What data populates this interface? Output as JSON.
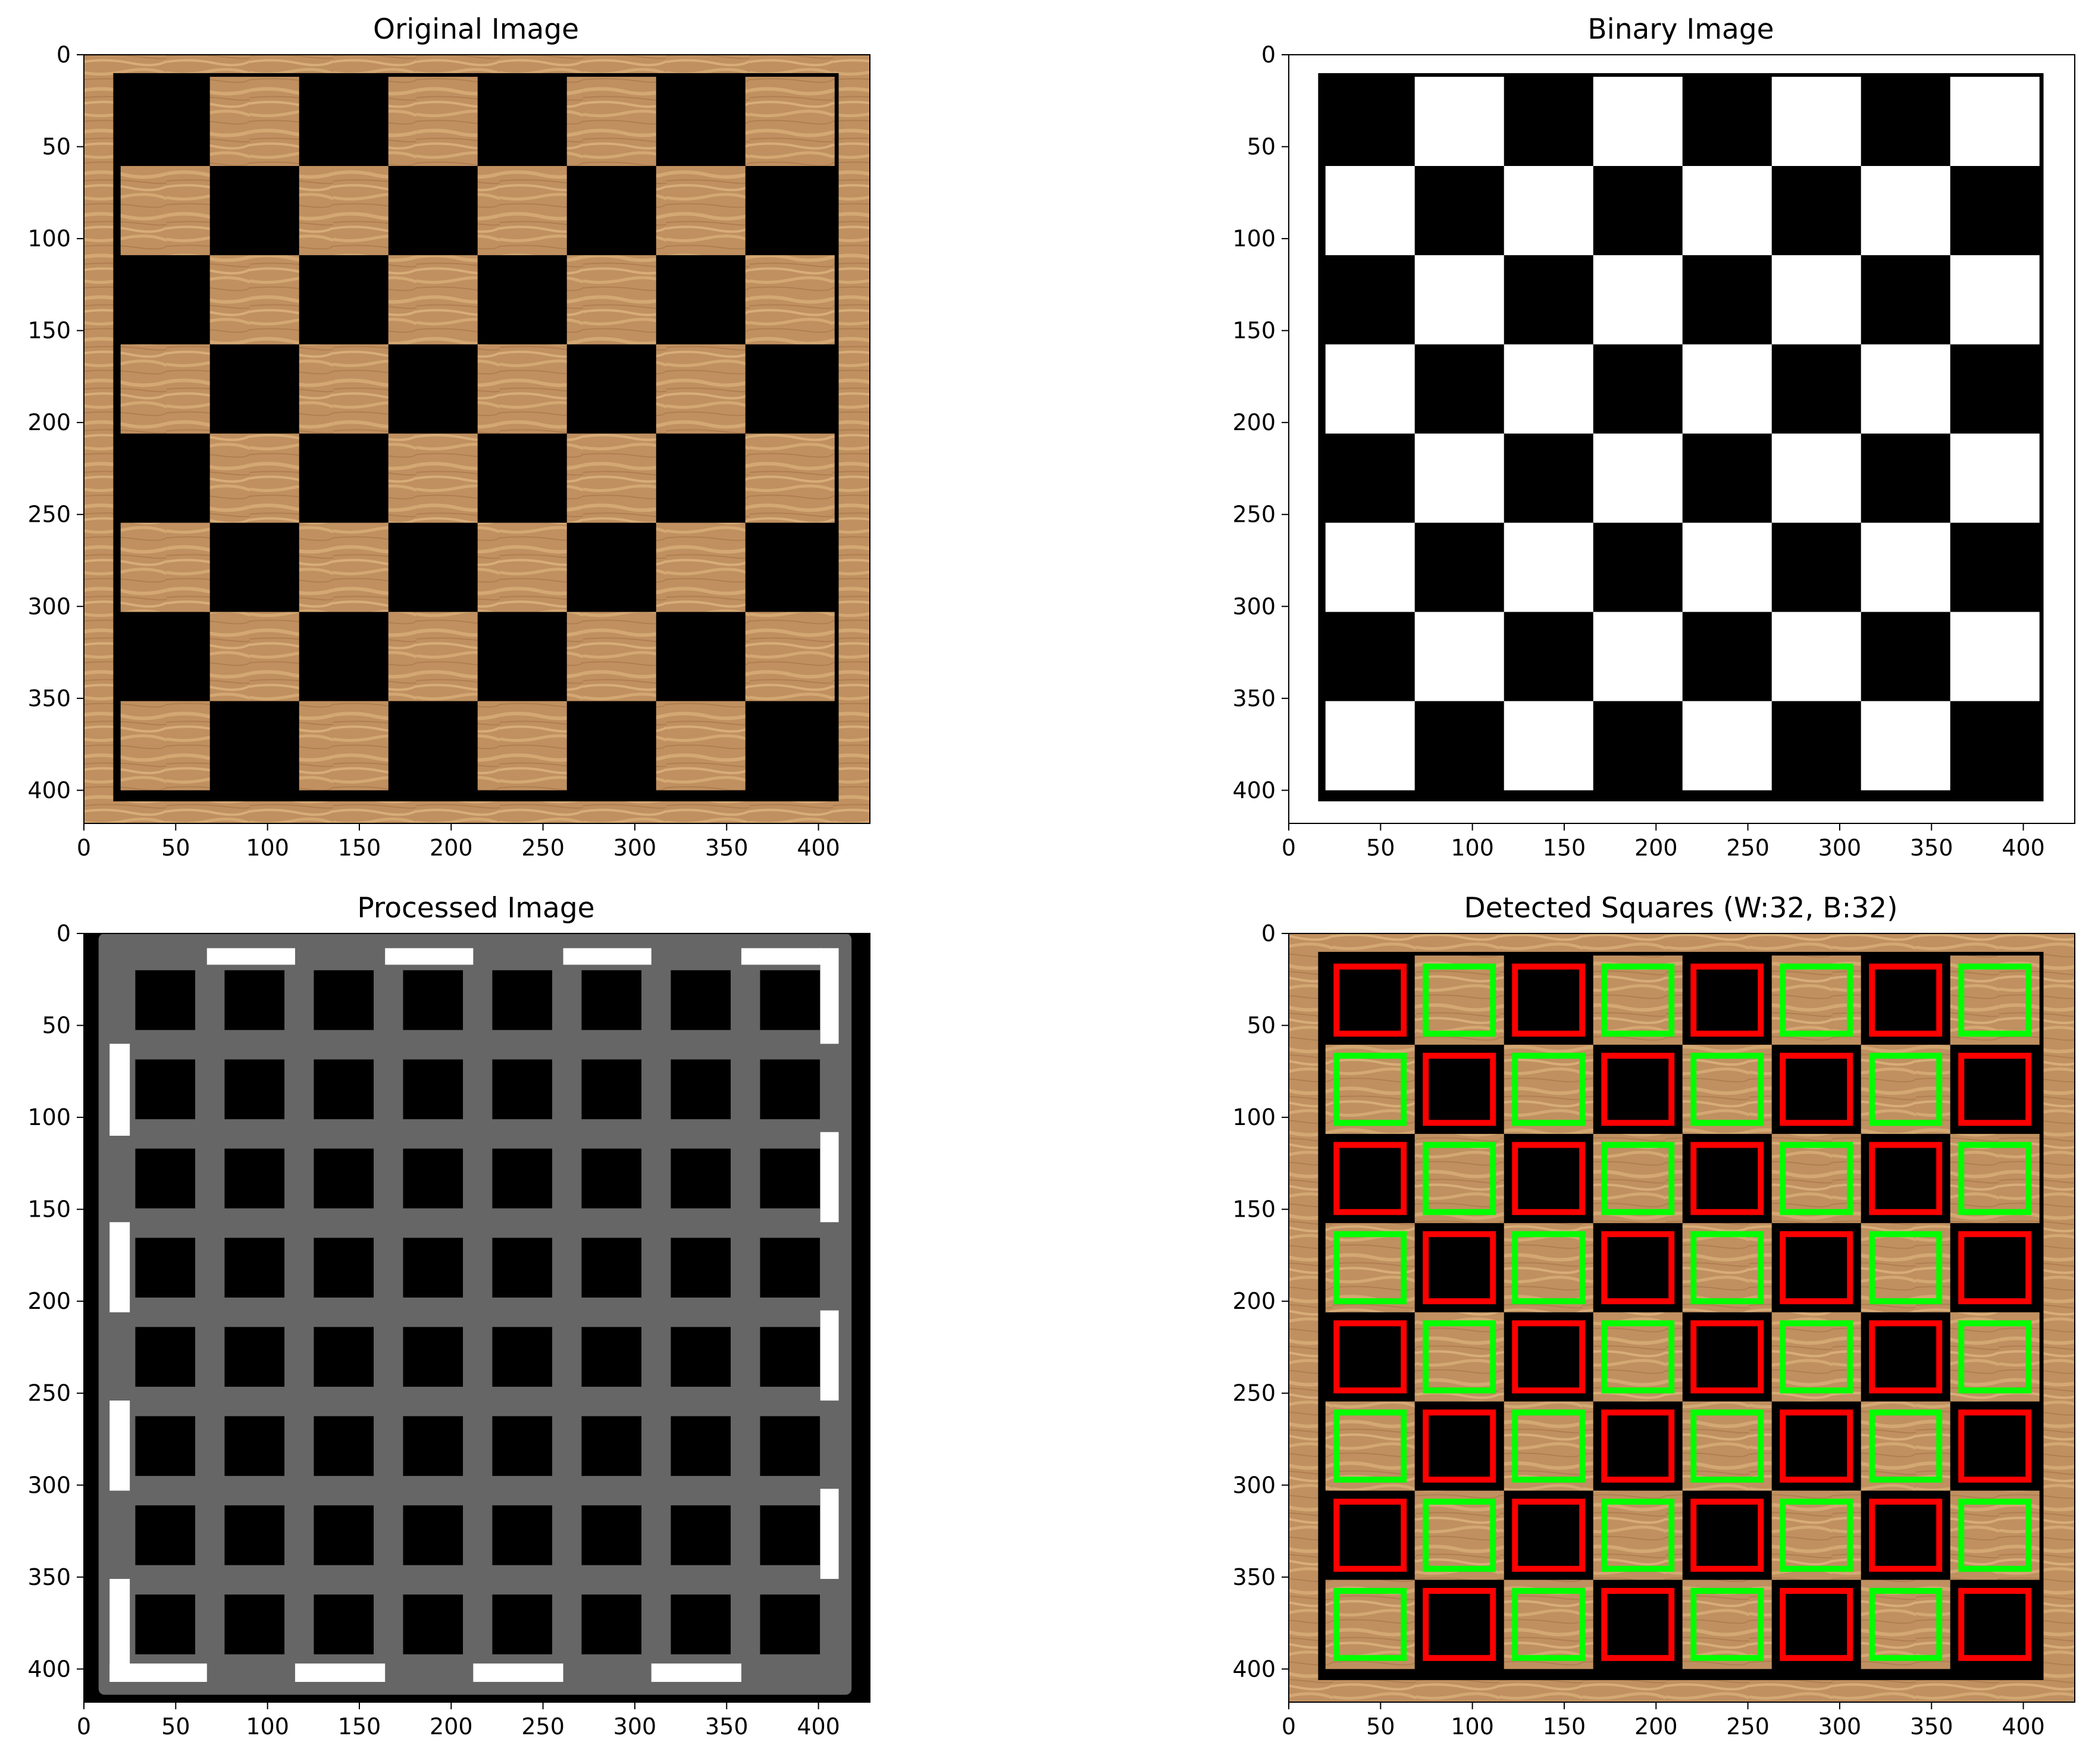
{
  "chart_data": [
    {
      "type": "image",
      "title": "Original Image",
      "image": "wood-chessboard",
      "xlim": [
        0,
        428
      ],
      "ylim": [
        418,
        0
      ],
      "xticks": [
        0,
        50,
        100,
        150,
        200,
        250,
        300,
        350,
        400
      ],
      "yticks": [
        0,
        50,
        100,
        150,
        200,
        250,
        300,
        350,
        400
      ],
      "board": {
        "x0": 16,
        "y0": 10,
        "x1": 411,
        "y1": 406
      },
      "grid": {
        "cols": 8,
        "rows": 8,
        "x0": 20,
        "y0": 12,
        "cell_w": 48.6,
        "cell_h": 48.5
      }
    },
    {
      "type": "image",
      "title": "Binary Image",
      "image": "binary-chessboard",
      "xlim": [
        0,
        428
      ],
      "ylim": [
        418,
        0
      ],
      "xticks": [
        0,
        50,
        100,
        150,
        200,
        250,
        300,
        350,
        400
      ],
      "yticks": [
        0,
        50,
        100,
        150,
        200,
        250,
        300,
        350,
        400
      ],
      "board": {
        "x0": 16,
        "y0": 10,
        "x1": 411,
        "y1": 406
      },
      "grid": {
        "cols": 8,
        "rows": 8,
        "x0": 20,
        "y0": 12,
        "cell_w": 48.6,
        "cell_h": 48.5
      }
    },
    {
      "type": "image",
      "title": "Processed Image",
      "image": "processed-grid",
      "xlim": [
        0,
        428
      ],
      "ylim": [
        418,
        0
      ],
      "xticks": [
        0,
        50,
        100,
        150,
        200,
        250,
        300,
        350,
        400
      ],
      "yticks": [
        0,
        50,
        100,
        150,
        200,
        250,
        300,
        350,
        400
      ],
      "background_gray": "#666666",
      "grid": {
        "cols": 8,
        "rows": 8,
        "x0": 20,
        "y0": 12,
        "cell_w": 48.6,
        "cell_h": 48.5
      }
    },
    {
      "type": "image",
      "title": "Detected Squares (W:32, B:32)",
      "image": "detected-squares",
      "xlim": [
        0,
        428
      ],
      "ylim": [
        418,
        0
      ],
      "xticks": [
        0,
        50,
        100,
        150,
        200,
        250,
        300,
        350,
        400
      ],
      "yticks": [
        0,
        50,
        100,
        150,
        200,
        250,
        300,
        350,
        400
      ],
      "white_count": 32,
      "black_count": 32,
      "white_box_color": "#00ff00",
      "black_box_color": "#ff0000",
      "grid": {
        "cols": 8,
        "rows": 8,
        "x0": 20,
        "y0": 12,
        "cell_w": 48.6,
        "cell_h": 48.5
      }
    }
  ],
  "colors": {
    "wood": "#c09060",
    "wood_light": "#d4a872",
    "wood_dark": "#a87a4a",
    "black": "#000000",
    "white": "#ffffff",
    "gray": "#666666"
  }
}
